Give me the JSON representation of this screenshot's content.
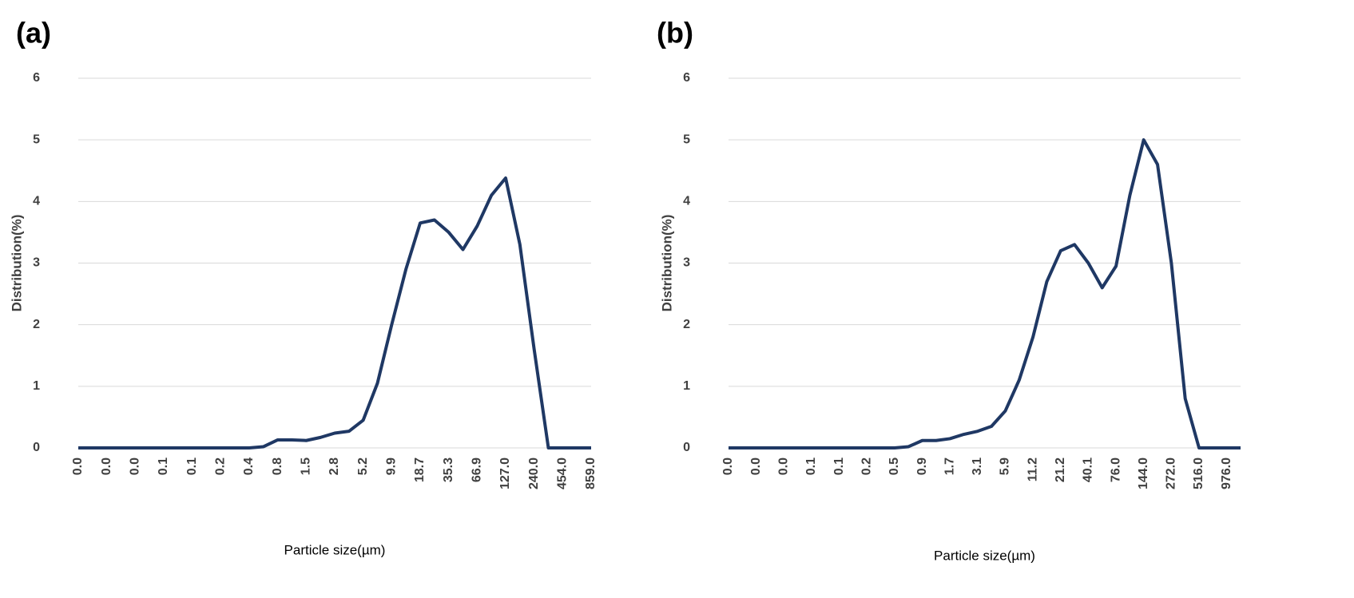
{
  "chart_data": [
    {
      "type": "line",
      "title": "(a)",
      "xlabel": "Particle size(µm)",
      "ylabel": "Distribution(%)",
      "categories": [
        "0.0",
        null,
        "0.0",
        null,
        "0.0",
        null,
        "0.1",
        null,
        "0.1",
        null,
        "0.2",
        null,
        "0.4",
        null,
        "0.8",
        null,
        "1.5",
        null,
        "2.8",
        null,
        "5.2",
        null,
        "9.9",
        null,
        "18.7",
        null,
        "35.3",
        null,
        "66.9",
        null,
        "127.0",
        null,
        "240.0",
        null,
        "454.0",
        null,
        "859.0"
      ],
      "values": [
        0,
        0,
        0,
        0,
        0,
        0,
        0,
        0,
        0,
        0,
        0,
        0,
        0,
        0.02,
        0.13,
        0.13,
        0.12,
        0.17,
        0.24,
        0.27,
        0.45,
        1.05,
        2.0,
        2.9,
        3.65,
        3.7,
        3.5,
        3.22,
        3.6,
        4.1,
        4.38,
        3.3,
        1.6,
        0,
        0,
        0,
        0
      ],
      "color": "#1f3864",
      "ylim": [
        0,
        6
      ],
      "yticks": [
        0,
        1,
        2,
        3,
        4,
        5,
        6
      ],
      "grid": true
    },
    {
      "type": "line",
      "title": "(b)",
      "xlabel": "Particle size(µm)",
      "ylabel": "Distribution(%)",
      "categories": [
        "0.0",
        null,
        "0.0",
        null,
        "0.0",
        null,
        "0.1",
        null,
        "0.1",
        null,
        "0.2",
        null,
        "0.5",
        null,
        "0.9",
        null,
        "1.7",
        null,
        "3.1",
        null,
        "5.9",
        null,
        "11.2",
        null,
        "21.2",
        null,
        "40.1",
        null,
        "76.0",
        null,
        "144.0",
        null,
        "272.0",
        null,
        "516.0",
        null,
        "976.0",
        null
      ],
      "values": [
        0,
        0,
        0,
        0,
        0,
        0,
        0,
        0,
        0,
        0,
        0,
        0,
        0,
        0.02,
        0.12,
        0.12,
        0.15,
        0.22,
        0.27,
        0.35,
        0.6,
        1.1,
        1.8,
        2.7,
        3.2,
        3.3,
        3.0,
        2.6,
        2.95,
        4.1,
        5.0,
        4.6,
        3.0,
        0.8,
        0,
        0,
        0,
        0
      ],
      "color": "#1f3864",
      "ylim": [
        0,
        6
      ],
      "yticks": [
        0,
        1,
        2,
        3,
        4,
        5,
        6
      ],
      "grid": true
    }
  ]
}
